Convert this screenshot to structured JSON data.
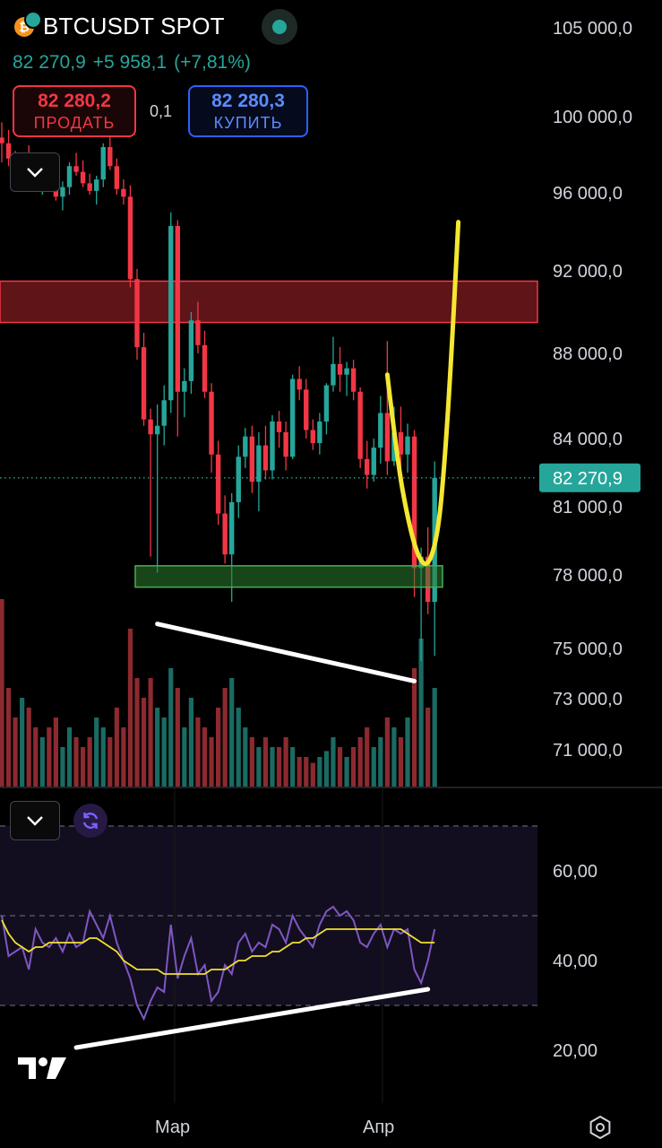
{
  "header": {
    "coin_icon": "bitcoin-icon",
    "symbol": "BTCUSDT SPOT",
    "last_price": "82 270,9",
    "change_abs": "+5 958,1",
    "change_pct": "(+7,81%)"
  },
  "trade": {
    "sell_price": "82 280,2",
    "sell_label": "ПРОДАТЬ",
    "spread": "0,1",
    "buy_price": "82 280,3",
    "buy_label": "КУПИТЬ"
  },
  "colors": {
    "up": "#26a69a",
    "down": "#f23645",
    "sell": "#f23645",
    "buy": "#2962ff",
    "rsi_line": "#7e57c2",
    "rsi_ma": "#f0e130",
    "drawing_yellow": "#f5e731",
    "drawing_white": "#ffffff"
  },
  "chart_data": [
    {
      "type": "candlestick",
      "symbol": "BTCUSDT SPOT",
      "price_axis_labels": [
        "105 000,0",
        "100 000,0",
        "96 000,0",
        "92 000,0",
        "88 000,0",
        "84 000,0",
        "81 000,0",
        "78 000,0",
        "75 000,0",
        "73 000,0",
        "71 000,0"
      ],
      "price_axis_values": [
        105000,
        100000,
        96000,
        92000,
        88000,
        84000,
        81000,
        78000,
        75000,
        73000,
        71000
      ],
      "current_price_label": "82 270,9",
      "current_price": 82270.9,
      "x_labels": [
        "Мар",
        "Апр"
      ],
      "ohlc": [
        [
          98900,
          99700,
          97600,
          98600
        ],
        [
          98600,
          99300,
          97400,
          97800
        ],
        [
          97800,
          98200,
          96500,
          96900
        ],
        [
          96900,
          98000,
          96300,
          97700
        ],
        [
          97700,
          98500,
          96900,
          97200
        ],
        [
          97200,
          97900,
          96100,
          96600
        ],
        [
          96600,
          97500,
          95900,
          97100
        ],
        [
          97100,
          97900,
          96500,
          96800
        ],
        [
          96800,
          97200,
          95600,
          95800
        ],
        [
          95800,
          96600,
          95100,
          96300
        ],
        [
          96300,
          97600,
          95900,
          97400
        ],
        [
          97400,
          98100,
          96900,
          97100
        ],
        [
          97100,
          97700,
          96300,
          96500
        ],
        [
          96500,
          97000,
          95900,
          96100
        ],
        [
          96100,
          96900,
          95400,
          96700
        ],
        [
          96700,
          98600,
          96300,
          98400
        ],
        [
          98400,
          99100,
          97200,
          97400
        ],
        [
          97400,
          97800,
          95900,
          96200
        ],
        [
          96200,
          96700,
          95400,
          95800
        ],
        [
          95800,
          96400,
          91200,
          91600
        ],
        [
          91600,
          92100,
          87700,
          88300
        ],
        [
          88300,
          89000,
          84600,
          84900
        ],
        [
          84900,
          85400,
          78800,
          84200
        ],
        [
          84200,
          85600,
          78100,
          84600
        ],
        [
          84600,
          86500,
          83700,
          85800
        ],
        [
          85800,
          95000,
          85200,
          94300
        ],
        [
          94300,
          94600,
          84100,
          86200
        ],
        [
          86200,
          87300,
          85000,
          86700
        ],
        [
          86700,
          90000,
          86100,
          89600
        ],
        [
          89600,
          90500,
          88000,
          88400
        ],
        [
          88400,
          89100,
          85900,
          86200
        ],
        [
          86200,
          86600,
          82500,
          83300
        ],
        [
          83300,
          83900,
          80200,
          80700
        ],
        [
          80700,
          81500,
          78500,
          78900
        ],
        [
          78900,
          81600,
          76900,
          81200
        ],
        [
          81200,
          83700,
          80500,
          83200
        ],
        [
          83200,
          84500,
          82700,
          84100
        ],
        [
          84100,
          84600,
          81600,
          82100
        ],
        [
          82100,
          84300,
          80800,
          83700
        ],
        [
          83700,
          84600,
          82200,
          82600
        ],
        [
          82600,
          85100,
          82200,
          84800
        ],
        [
          84800,
          85300,
          83600,
          84300
        ],
        [
          84300,
          84800,
          82600,
          83200
        ],
        [
          83200,
          87000,
          83100,
          86800
        ],
        [
          86800,
          87400,
          85800,
          86300
        ],
        [
          86300,
          86800,
          84000,
          84400
        ],
        [
          84400,
          84900,
          83500,
          83800
        ],
        [
          83800,
          85200,
          83300,
          84800
        ],
        [
          84800,
          86600,
          84200,
          86500
        ],
        [
          86500,
          88800,
          86200,
          87500
        ],
        [
          87500,
          88300,
          86200,
          87000
        ],
        [
          87000,
          87600,
          86000,
          87300
        ],
        [
          87300,
          87700,
          85800,
          86200
        ],
        [
          86200,
          86400,
          82700,
          83100
        ],
        [
          83100,
          83900,
          81800,
          82400
        ],
        [
          82400,
          84000,
          82100,
          83600
        ],
        [
          83600,
          86000,
          82900,
          85200
        ],
        [
          85200,
          88600,
          82400,
          83000
        ],
        [
          83000,
          85500,
          82800,
          84300
        ],
        [
          84300,
          85500,
          82700,
          83300
        ],
        [
          83300,
          84700,
          82500,
          84100
        ],
        [
          84100,
          84400,
          77100,
          78300
        ],
        [
          78300,
          79200,
          74500,
          78800
        ],
        [
          78800,
          80100,
          76400,
          76900
        ],
        [
          76900,
          83000,
          74700,
          82270
        ]
      ],
      "volume_relative": [
        0.95,
        0.5,
        0.35,
        0.45,
        0.4,
        0.3,
        0.25,
        0.3,
        0.35,
        0.2,
        0.3,
        0.25,
        0.2,
        0.25,
        0.35,
        0.3,
        0.25,
        0.4,
        0.3,
        0.8,
        0.55,
        0.45,
        0.55,
        0.4,
        0.35,
        0.6,
        0.5,
        0.3,
        0.45,
        0.35,
        0.3,
        0.25,
        0.4,
        0.5,
        0.55,
        0.4,
        0.3,
        0.25,
        0.2,
        0.25,
        0.2,
        0.2,
        0.25,
        0.2,
        0.15,
        0.15,
        0.12,
        0.15,
        0.18,
        0.25,
        0.2,
        0.15,
        0.2,
        0.25,
        0.3,
        0.2,
        0.25,
        0.35,
        0.3,
        0.25,
        0.35,
        0.6,
        0.75,
        0.4,
        0.5
      ]
    },
    {
      "type": "line",
      "indicator": "RSI",
      "axis_labels": [
        "60,00",
        "40,00",
        "20,00"
      ],
      "axis_values": [
        60,
        40,
        20
      ],
      "bands": [
        70,
        50,
        30
      ],
      "rsi": [
        50,
        41,
        42,
        43,
        38,
        47,
        44,
        43,
        45,
        42,
        46,
        43,
        44,
        51,
        48,
        45,
        50,
        44,
        40,
        36,
        30,
        27,
        31,
        34,
        33,
        48,
        36,
        41,
        45,
        37,
        39,
        31,
        33,
        39,
        37,
        44,
        46,
        42,
        44,
        43,
        48,
        47,
        44,
        50,
        47,
        45,
        43,
        48,
        51,
        52,
        50,
        51,
        49,
        44,
        43,
        46,
        48,
        43,
        47,
        46,
        47,
        38,
        35,
        40,
        47
      ],
      "rsi_ma": [
        49,
        46,
        44,
        43,
        42,
        43,
        43,
        44,
        44,
        44,
        44,
        44,
        44,
        45,
        45,
        44,
        43,
        42,
        40,
        39,
        38,
        38,
        38,
        38,
        37,
        37,
        37,
        37,
        37,
        37,
        37,
        38,
        38,
        38,
        39,
        40,
        40,
        41,
        41,
        41,
        42,
        42,
        43,
        44,
        44,
        45,
        45,
        46,
        47,
        47,
        47,
        47,
        47,
        47,
        47,
        47,
        47,
        47,
        47,
        47,
        46,
        45,
        44,
        44,
        44
      ]
    }
  ],
  "drawings": {
    "supply_zone": [
      89500,
      91500
    ],
    "demand_zone": [
      77500,
      78400
    ],
    "yellow_path_price": [
      [
        57,
        87000
      ],
      [
        58.5,
        83000
      ],
      [
        60,
        80500
      ],
      [
        61.5,
        78800
      ],
      [
        63,
        78300
      ],
      [
        64.5,
        79800
      ],
      [
        65.5,
        83000
      ],
      [
        66.5,
        88000
      ],
      [
        67.5,
        94500
      ]
    ],
    "price_trendline": [
      [
        23,
        76000
      ],
      [
        61,
        73700
      ]
    ],
    "rsi_trendline": [
      [
        11,
        20.6
      ],
      [
        63,
        33.6
      ]
    ]
  },
  "footer": {
    "x_labels": [
      "Мар",
      "Апр"
    ],
    "logo_icon": "tradingview-logo-icon",
    "settings_icon": "settings-icon"
  }
}
